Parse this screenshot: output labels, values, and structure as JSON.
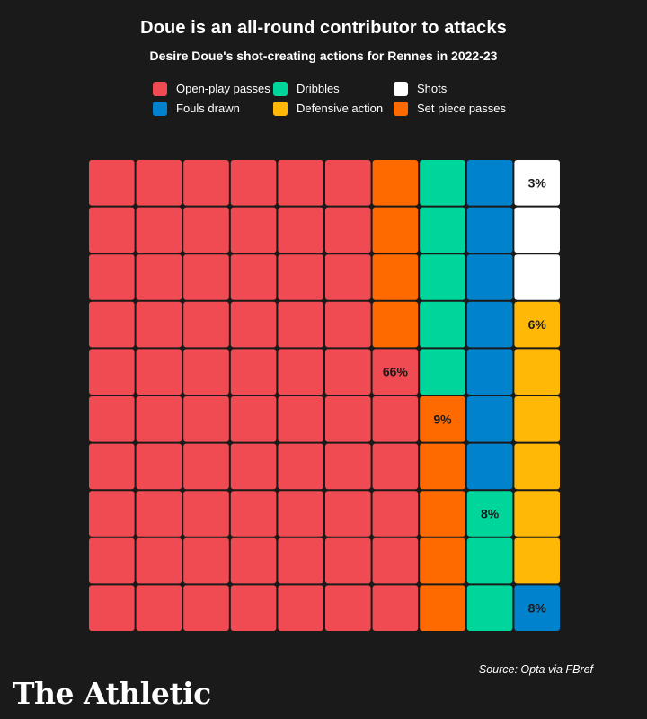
{
  "header": {
    "title": "Doue is an all-round contributor to attacks",
    "subtitle": "Desire Doue's shot-creating actions for Rennes in 2022-23"
  },
  "legend": {
    "items": [
      {
        "label": "Open-play passes",
        "color": "#f04b52"
      },
      {
        "label": "Dribbles",
        "color": "#00d69b"
      },
      {
        "label": "Shots",
        "color": "#ffffff"
      },
      {
        "label": "Fouls drawn",
        "color": "#0082cc"
      },
      {
        "label": "Defensive action",
        "color": "#ffb805"
      },
      {
        "label": "Set piece passes",
        "color": "#ff6a00"
      }
    ]
  },
  "chart_data": {
    "type": "waffle",
    "grid": {
      "columns": 10,
      "rows": 10
    },
    "fill_order": "column-major from bottom-left",
    "series": [
      {
        "name": "Open-play passes",
        "value": 66,
        "label": "66%",
        "color": "#f04b52"
      },
      {
        "name": "Set piece passes",
        "value": 9,
        "label": "9%",
        "color": "#ff6a00"
      },
      {
        "name": "Dribbles",
        "value": 8,
        "label": "8%",
        "color": "#00d69b"
      },
      {
        "name": "Fouls drawn",
        "value": 8,
        "label": "8%",
        "color": "#0082cc"
      },
      {
        "name": "Defensive action",
        "value": 6,
        "label": "6%",
        "color": "#ffb805"
      },
      {
        "name": "Shots",
        "value": 3,
        "label": "3%",
        "color": "#ffffff"
      }
    ]
  },
  "footer": {
    "source": "Source: Opta via FBref",
    "brand": "The Athletic"
  }
}
